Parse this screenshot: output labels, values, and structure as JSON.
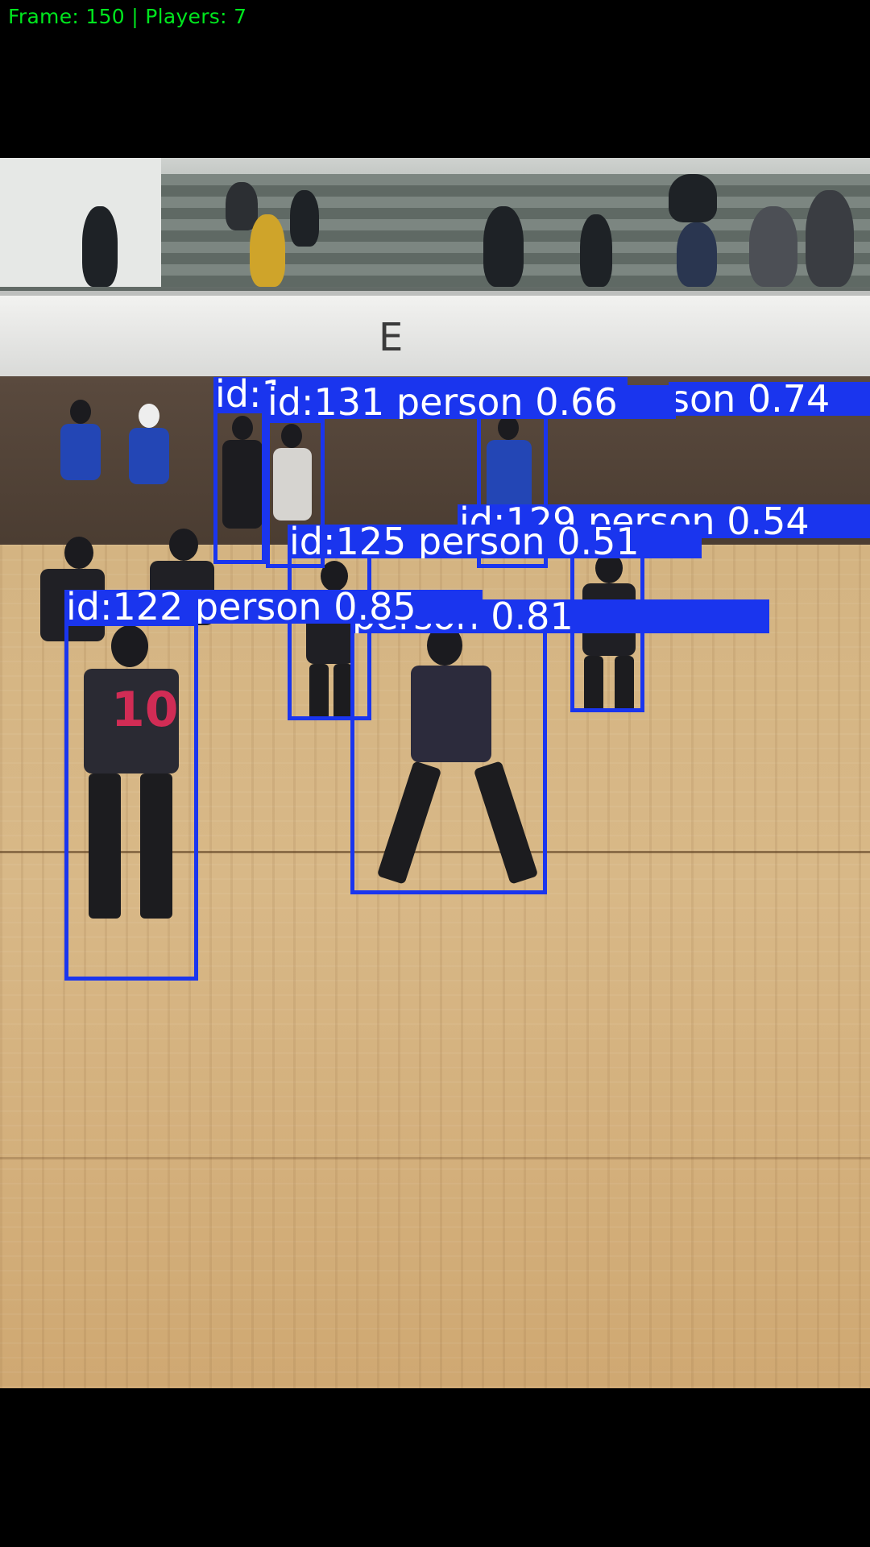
{
  "hud": {
    "text": "Frame: 150 | Players: 7"
  },
  "scene": {
    "banner_letter": "E"
  },
  "detections": [
    {
      "label": "id:131 person 0.66"
    },
    {
      "label": "son 0.74"
    },
    {
      "label": "id:129 person 0.54"
    },
    {
      "label": "id:125 person 0.51"
    },
    {
      "label": "id:122 person 0.85"
    },
    {
      "label": "person 0.81"
    },
    {
      "label": "id:1"
    }
  ],
  "colors": {
    "box": "#1a35ee",
    "hud": "#00e61e"
  }
}
